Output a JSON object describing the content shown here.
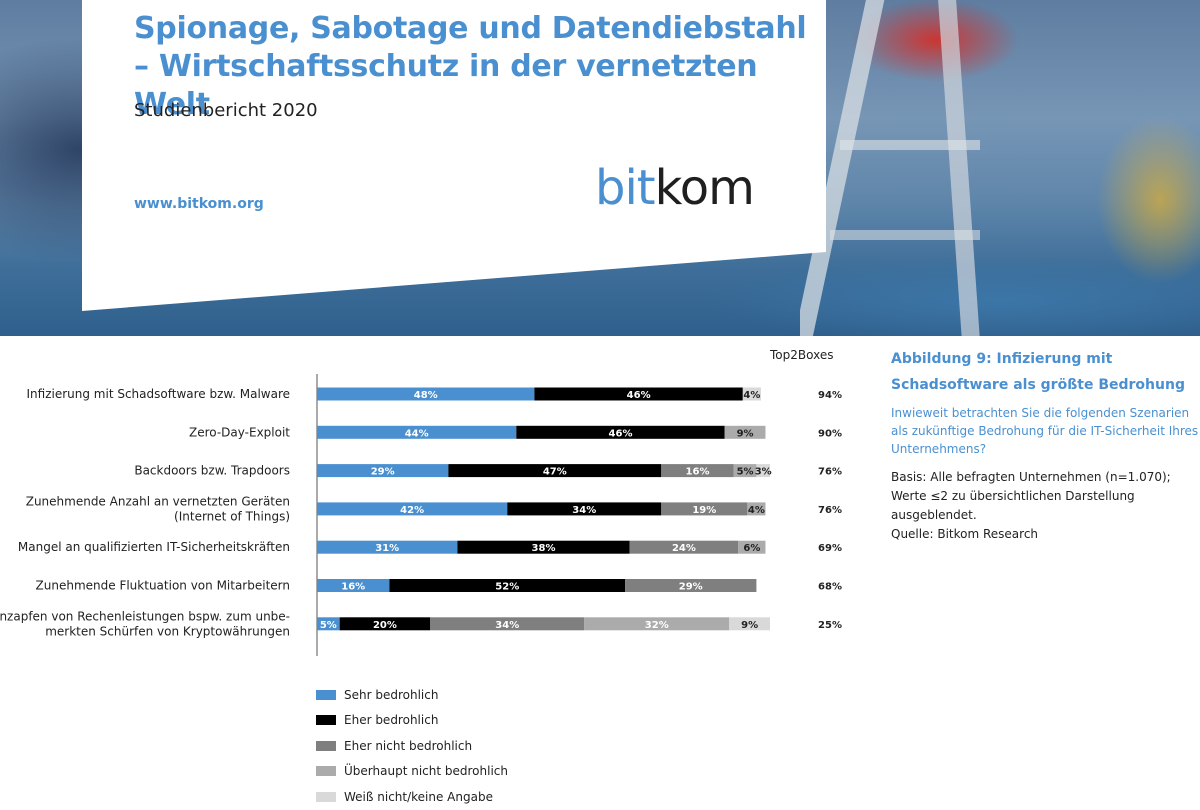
{
  "report": {
    "title": "Spionage, Sabotage und Datendiebstahl – Wirtschaftsschutz in der vernetzten Welt",
    "subtitle": "Studienbericht 2020",
    "url": "www.bitkom.org",
    "brand_part1": "bit",
    "brand_part2": "kom"
  },
  "figure": {
    "title": "Abbildung 9: Infizierung mit Schadsoftware als größte Bedrohung",
    "question": "Inwieweit betrachten Sie die folgenden Szenarien als zukünftige Bedrohung für die IT-Sicherheit Ihres Unternehmens?",
    "basis": "Basis: Alle befragten Unternehmen (n=1.070);",
    "note": "Werte ≤2 zu übersichtlichen Darstellung ausgeblendet.",
    "source": "Quelle: Bitkom Research"
  },
  "colors": {
    "accent": "#4a90d0",
    "series": [
      "#4a90d0",
      "#000000",
      "#7f7f7f",
      "#ababab",
      "#d9d9d9"
    ]
  },
  "chart_data": {
    "type": "bar",
    "orientation": "horizontal-stacked",
    "top2_header": "Top2Boxes",
    "categories": [
      [
        "Infizierung mit Schadsoftware bzw. Malware"
      ],
      [
        "Zero-Day-Exploit"
      ],
      [
        "Backdoors bzw. Trapdoors"
      ],
      [
        "Zunehmende Anzahl an vernetzten Geräten",
        "(Internet of Things)"
      ],
      [
        "Mangel an qualifizierten IT-Sicherheitskräften"
      ],
      [
        "Zunehmende Fluktuation von Mitarbeitern"
      ],
      [
        "Anzapfen von Rechenleistungen bspw. zum unbe-",
        "merkten Schürfen von Kryptowährungen"
      ]
    ],
    "series": [
      {
        "name": "Sehr bedrohlich",
        "values": [
          48,
          44,
          29,
          42,
          31,
          16,
          5
        ]
      },
      {
        "name": "Eher bedrohlich",
        "values": [
          46,
          46,
          47,
          34,
          38,
          52,
          20
        ]
      },
      {
        "name": "Eher nicht bedrohlich",
        "values": [
          null,
          null,
          16,
          19,
          24,
          29,
          34
        ]
      },
      {
        "name": "Überhaupt nicht bedrohlich",
        "values": [
          null,
          9,
          5,
          4,
          6,
          null,
          32
        ]
      },
      {
        "name": "Weiß nicht/keine Angabe",
        "values": [
          4,
          null,
          3,
          null,
          null,
          null,
          9
        ]
      }
    ],
    "top2": [
      "94%",
      "90%",
      "76%",
      "76%",
      "69%",
      "68%",
      "25%"
    ],
    "xlim": [
      0,
      100
    ],
    "legend_position": "bottom-left",
    "grid": false
  }
}
